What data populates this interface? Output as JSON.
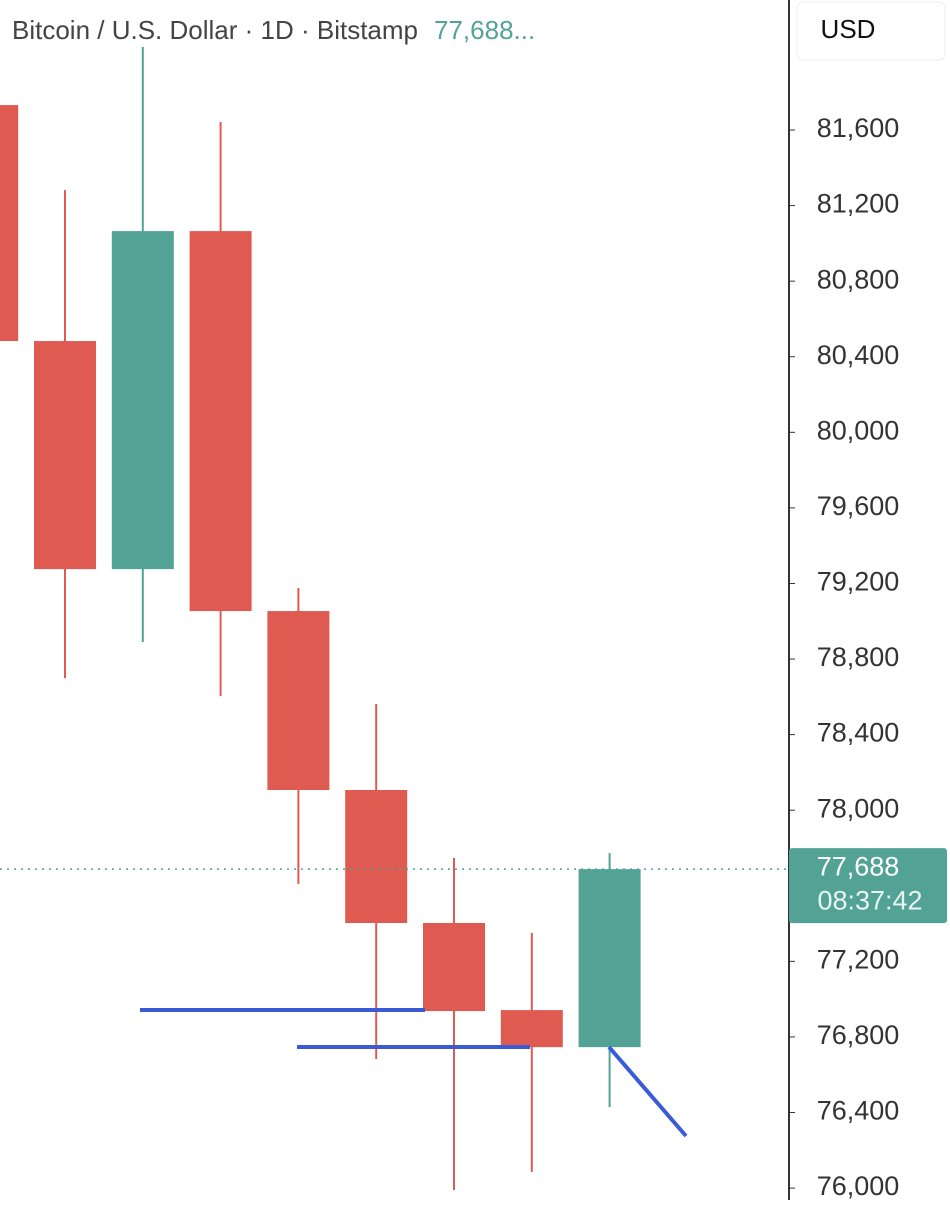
{
  "chart_data": {
    "type": "candlestick",
    "title": "Bitcoin / U.S. Dollar · 1D · Bitstamp",
    "header_price": "77,688...",
    "currency": "USD",
    "open": [
      81732,
      80483,
      79276,
      81065,
      79054,
      78107,
      77403,
      76942,
      76746
    ],
    "high": [
      81732,
      81282,
      82039,
      81642,
      79176,
      78562,
      77747,
      77350,
      77773
    ],
    "low": [
      80483,
      78699,
      78890,
      78604,
      77609,
      76683,
      75989,
      76085,
      76429
    ],
    "close": [
      80483,
      79276,
      81065,
      79054,
      78107,
      77403,
      76937,
      76746,
      77688
    ],
    "up_color": "#52a395",
    "down_color": "#df5b52",
    "ylim": [
      75937,
      82288
    ],
    "yticks": [
      {
        "value": 81600,
        "label": "81,600"
      },
      {
        "value": 81200,
        "label": "81,200"
      },
      {
        "value": 80800,
        "label": "80,800"
      },
      {
        "value": 80400,
        "label": "80,400"
      },
      {
        "value": 80000,
        "label": "80,000"
      },
      {
        "value": 79600,
        "label": "79,600"
      },
      {
        "value": 79200,
        "label": "79,200"
      },
      {
        "value": 78800,
        "label": "78,800"
      },
      {
        "value": 78400,
        "label": "78,400"
      },
      {
        "value": 78000,
        "label": "78,000"
      },
      {
        "value": 77200,
        "label": "77,200"
      },
      {
        "value": 76800,
        "label": "76,800"
      },
      {
        "value": 76400,
        "label": "76,400"
      },
      {
        "value": 76000,
        "label": "76,000"
      }
    ],
    "last_price": {
      "value": 77688,
      "label": "77,688"
    },
    "countdown": "08:37:42"
  }
}
